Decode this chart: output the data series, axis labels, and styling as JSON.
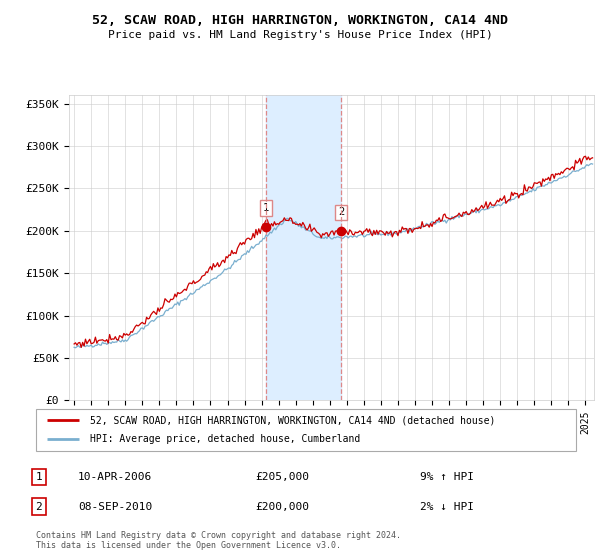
{
  "title_line1": "52, SCAW ROAD, HIGH HARRINGTON, WORKINGTON, CA14 4ND",
  "title_line2": "Price paid vs. HM Land Registry's House Price Index (HPI)",
  "ylabel_ticks": [
    "£0",
    "£50K",
    "£100K",
    "£150K",
    "£200K",
    "£250K",
    "£300K",
    "£350K"
  ],
  "ytick_values": [
    0,
    50000,
    100000,
    150000,
    200000,
    250000,
    300000,
    350000
  ],
  "ylim": [
    0,
    360000
  ],
  "xlim_start": 1994.7,
  "xlim_end": 2025.5,
  "sale1_x": 2006.27,
  "sale1_y": 205000,
  "sale2_x": 2010.67,
  "sale2_y": 200000,
  "shade_x1": 2006.27,
  "shade_x2": 2010.67,
  "legend_line1": "52, SCAW ROAD, HIGH HARRINGTON, WORKINGTON, CA14 4ND (detached house)",
  "legend_line2": "HPI: Average price, detached house, Cumberland",
  "footer": "Contains HM Land Registry data © Crown copyright and database right 2024.\nThis data is licensed under the Open Government Licence v3.0.",
  "red_color": "#cc0000",
  "blue_color": "#7aafcf",
  "shade_color": "#ddeeff",
  "dashed_color": "#dd8888"
}
